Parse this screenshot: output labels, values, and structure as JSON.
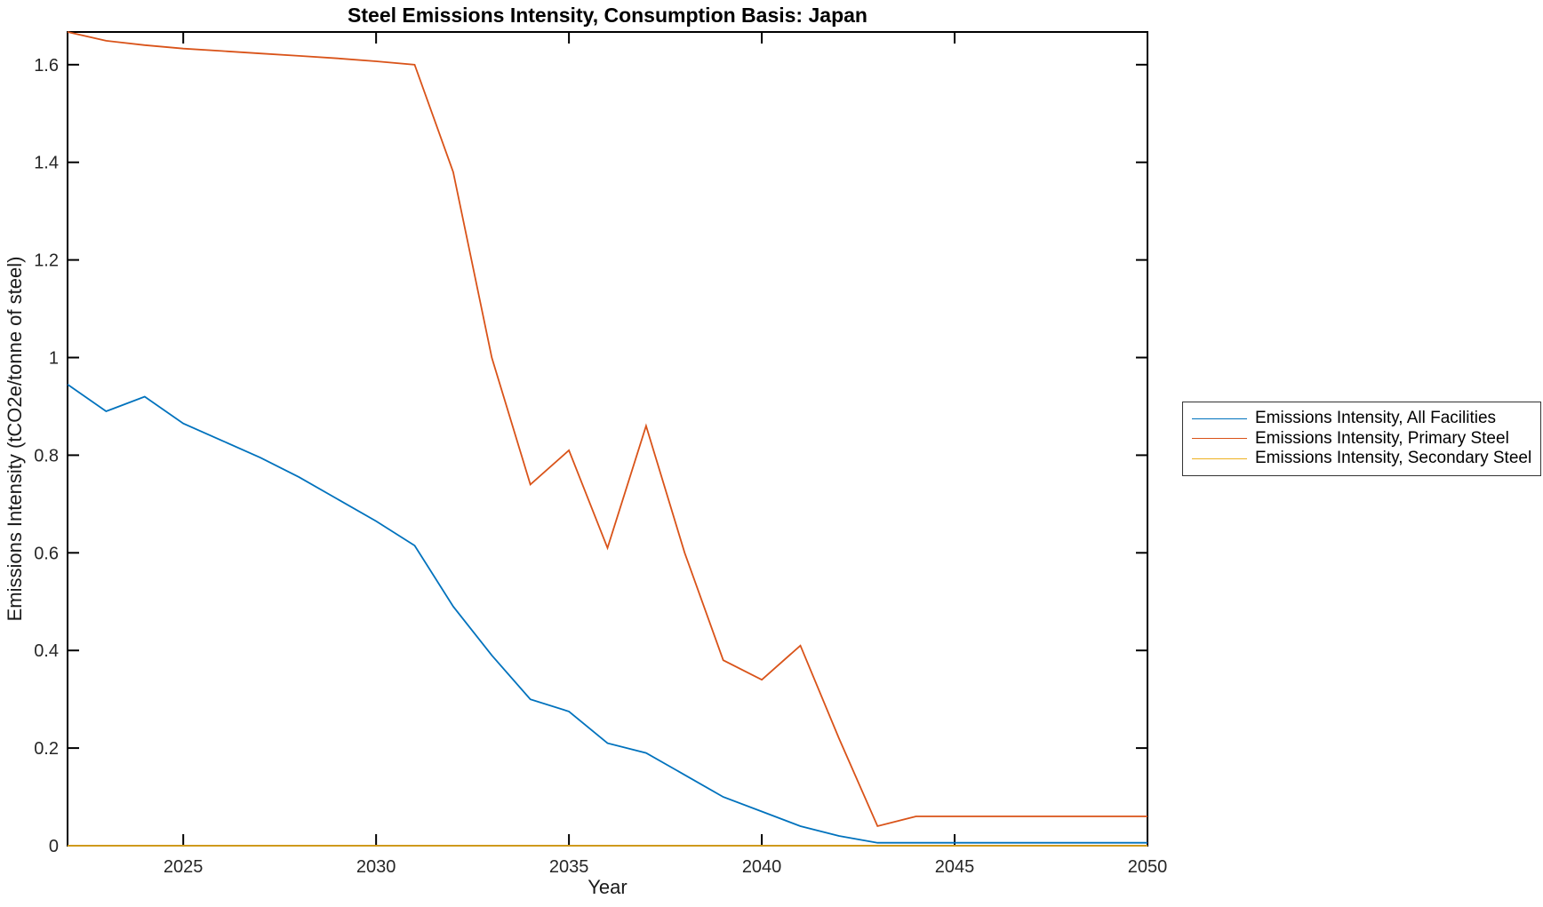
{
  "figure": {
    "title": "Steel Emissions Intensity, Consumption Basis: Japan",
    "xlabel": "Year",
    "ylabel": "Emissions Intensity (tCO2e/tonne of steel)"
  },
  "colors": {
    "all_facilities": "#0072BD",
    "primary_steel": "#D95319",
    "secondary_steel": "#EDB120",
    "axis": "#000000",
    "tick_text": "#262626"
  },
  "legend": {
    "entries": [
      "Emissions Intensity, All Facilities",
      "Emissions Intensity, Primary Steel",
      "Emissions Intensity, Secondary Steel"
    ],
    "position": "outside-right"
  },
  "chart_data": {
    "type": "line",
    "title": "Steel Emissions Intensity, Consumption Basis: Japan",
    "xlabel": "Year",
    "ylabel": "Emissions Intensity (tCO2e/tonne of steel)",
    "xlim": [
      2022,
      2050
    ],
    "ylim": [
      0,
      1.667
    ],
    "xticks": [
      2025,
      2030,
      2035,
      2040,
      2045,
      2050
    ],
    "yticks": [
      0,
      0.2,
      0.4,
      0.6,
      0.8,
      1,
      1.2,
      1.4,
      1.6
    ],
    "grid": false,
    "legend_position": "outside-right",
    "x": [
      2022,
      2023,
      2024,
      2025,
      2026,
      2027,
      2028,
      2029,
      2030,
      2031,
      2032,
      2033,
      2034,
      2035,
      2036,
      2037,
      2038,
      2039,
      2040,
      2041,
      2042,
      2043,
      2044,
      2045,
      2046,
      2047,
      2048,
      2049,
      2050
    ],
    "series": [
      {
        "key": "all-facilities",
        "name": "Emissions Intensity, All Facilities",
        "color": "#0072BD",
        "values": [
          0.945,
          0.89,
          0.92,
          0.865,
          0.83,
          0.795,
          0.755,
          0.71,
          0.665,
          0.615,
          0.49,
          0.39,
          0.3,
          0.275,
          0.21,
          0.19,
          0.145,
          0.1,
          0.07,
          0.04,
          0.02,
          0.006,
          0.006,
          0.006,
          0.006,
          0.006,
          0.006,
          0.006,
          0.006
        ]
      },
      {
        "key": "primary-steel",
        "name": "Emissions Intensity, Primary Steel",
        "color": "#D95319",
        "values": [
          1.667,
          1.649,
          1.64,
          1.633,
          1.628,
          1.623,
          1.618,
          1.613,
          1.607,
          1.6,
          1.38,
          1.0,
          0.74,
          0.81,
          0.61,
          0.86,
          0.6,
          0.38,
          0.34,
          0.41,
          0.22,
          0.04,
          0.06,
          0.06,
          0.06,
          0.06,
          0.06,
          0.06,
          0.06
        ]
      },
      {
        "key": "secondary-steel",
        "name": "Emissions Intensity, Secondary Steel",
        "color": "#EDB120",
        "values": [
          0,
          0,
          0,
          0,
          0,
          0,
          0,
          0,
          0,
          0,
          0,
          0,
          0,
          0,
          0,
          0,
          0,
          0,
          0,
          0,
          0,
          0,
          0,
          0,
          0,
          0,
          0,
          0,
          0
        ]
      }
    ]
  }
}
